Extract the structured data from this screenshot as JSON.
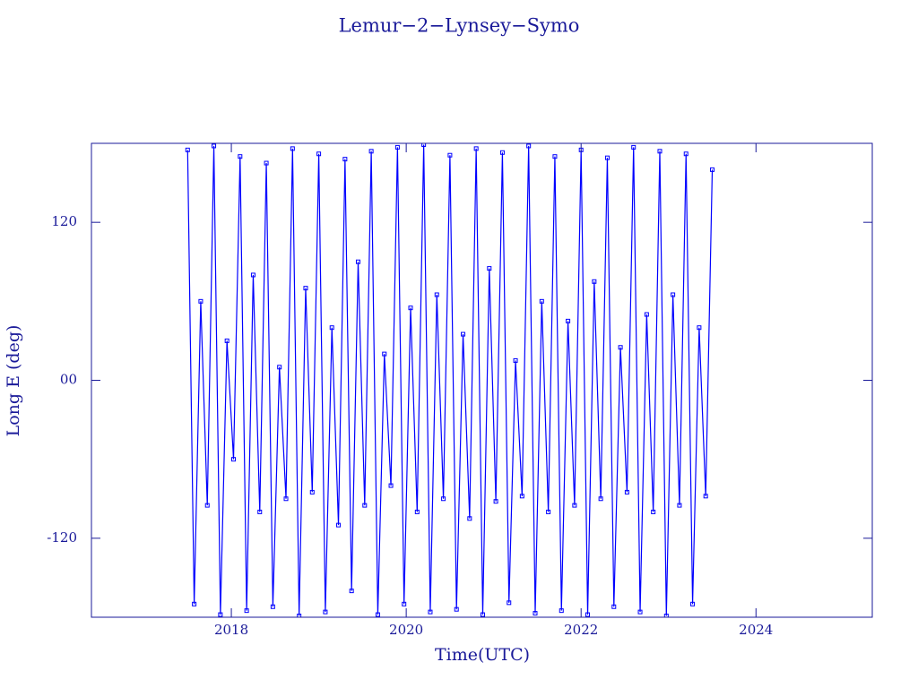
{
  "chart_data": {
    "type": "line",
    "title": "Lemur−2−Lynsey−Symo",
    "x_label": "Time(UTC)",
    "y_label": "Long E (deg)",
    "xlim": [
      2016.4,
      2025.33
    ],
    "xticks": [
      2018,
      2020,
      2022,
      2024
    ],
    "ylim": [
      -180,
      180
    ],
    "yticks": [
      -120,
      {
        "value": 0,
        "label": "00"
      },
      120
    ],
    "series": [
      {
        "color": "#0000ff",
        "x": [
          2017.5,
          2017.575,
          2017.65,
          2017.725,
          2017.8,
          2017.875,
          2017.95,
          2018.025,
          2018.1,
          2018.175,
          2018.25,
          2018.325,
          2018.4,
          2018.475,
          2018.55,
          2018.625,
          2018.7,
          2018.775,
          2018.85,
          2018.925,
          2019.0,
          2019.075,
          2019.15,
          2019.225,
          2019.3,
          2019.375,
          2019.45,
          2019.525,
          2019.6,
          2019.675,
          2019.75,
          2019.825,
          2019.9,
          2019.975,
          2020.05,
          2020.125,
          2020.2,
          2020.275,
          2020.35,
          2020.425,
          2020.5,
          2020.575,
          2020.65,
          2020.725,
          2020.8,
          2020.875,
          2020.95,
          2021.025,
          2021.1,
          2021.175,
          2021.25,
          2021.325,
          2021.4,
          2021.475,
          2021.55,
          2021.625,
          2021.7,
          2021.775,
          2021.85,
          2021.925,
          2022.0,
          2022.075,
          2022.15,
          2022.225,
          2022.3,
          2022.375,
          2022.45,
          2022.525,
          2022.6,
          2022.675,
          2022.75,
          2022.825,
          2022.9,
          2022.975,
          2023.05,
          2023.125,
          2023.2,
          2023.275,
          2023.35,
          2023.425,
          2023.5
        ],
        "values": [
          175,
          -170,
          60,
          -95,
          178,
          -178,
          30,
          -60,
          170,
          -175,
          80,
          -100,
          165,
          -172,
          10,
          -90,
          176,
          -179,
          70,
          -85,
          172,
          -176,
          40,
          -110,
          168,
          -160,
          90,
          -95,
          174,
          -178,
          20,
          -80,
          177,
          -170,
          55,
          -100,
          179,
          -176,
          65,
          -90,
          171,
          -174,
          35,
          -105,
          176,
          -178,
          85,
          -92,
          173,
          -169,
          15,
          -88,
          178,
          -177,
          60,
          -100,
          170,
          -175,
          45,
          -95,
          175,
          -178,
          75,
          -90,
          169,
          -172,
          25,
          -85,
          177,
          -176,
          50,
          -100,
          174,
          -179,
          65,
          -95,
          172,
          -170,
          40,
          -88,
          160
        ]
      }
    ]
  }
}
